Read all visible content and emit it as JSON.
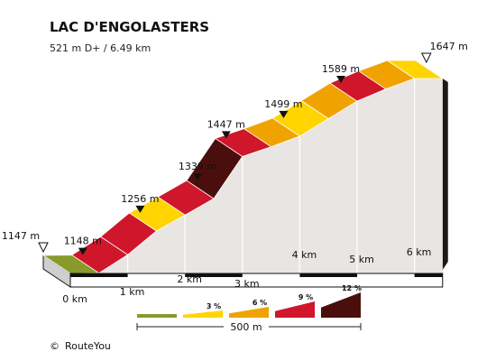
{
  "chart_data": {
    "type": "area",
    "title": "LAC D'ENGOLASTERS",
    "subtitle": "521 m D+ / 6.49 km",
    "distance_unit": "km",
    "elevation_unit": "m",
    "x_range": [
      0,
      6.49
    ],
    "y_range": [
      1147,
      1647
    ],
    "profile": [
      {
        "km": 0.0,
        "ele": 1147
      },
      {
        "km": 0.5,
        "ele": 1148
      },
      {
        "km": 1.0,
        "ele": 1195
      },
      {
        "km": 1.5,
        "ele": 1256
      },
      {
        "km": 2.0,
        "ele": 1297
      },
      {
        "km": 2.5,
        "ele": 1339
      },
      {
        "km": 3.0,
        "ele": 1447
      },
      {
        "km": 3.5,
        "ele": 1472
      },
      {
        "km": 4.0,
        "ele": 1499
      },
      {
        "km": 4.5,
        "ele": 1544
      },
      {
        "km": 5.0,
        "ele": 1589
      },
      {
        "km": 5.5,
        "ele": 1620
      },
      {
        "km": 6.0,
        "ele": 1647
      },
      {
        "km": 6.49,
        "ele": 1647
      }
    ],
    "segment_grades": [
      "low",
      "high",
      "high",
      "medium",
      "high",
      "very_high",
      "high",
      "medium-high",
      "medium",
      "medium-high",
      "high",
      "medium-high",
      "medium"
    ],
    "elevation_labels": [
      {
        "km": 0.0,
        "label": "1147 m",
        "marker": "start"
      },
      {
        "km": 0.5,
        "label": "1148 m",
        "marker": "point"
      },
      {
        "km": 1.5,
        "label": "1256 m",
        "marker": "point"
      },
      {
        "km": 2.5,
        "label": "1339 m",
        "marker": "point"
      },
      {
        "km": 3.0,
        "label": "1447 m",
        "marker": "point"
      },
      {
        "km": 4.0,
        "label": "1499 m",
        "marker": "point"
      },
      {
        "km": 5.0,
        "label": "1589 m",
        "marker": "point"
      },
      {
        "km": 6.49,
        "label": "1647 m",
        "marker": "end"
      }
    ],
    "km_ticks": [
      {
        "km": 0,
        "label": "0 km"
      },
      {
        "km": 1,
        "label": "1 km"
      },
      {
        "km": 2,
        "label": "2 km"
      },
      {
        "km": 3,
        "label": "3 km"
      },
      {
        "km": 4,
        "label": "4 km"
      },
      {
        "km": 5,
        "label": "5 km"
      },
      {
        "km": 6,
        "label": "6 km"
      }
    ],
    "legend": [
      {
        "label": "",
        "color": "#8a9a2a"
      },
      {
        "label": "3 %",
        "color": "#ffd400"
      },
      {
        "label": "6 %",
        "color": "#f0a300"
      },
      {
        "label": "9 %",
        "color": "#d0162a"
      },
      {
        "label": "12 %",
        "color": "#4a0f0c"
      }
    ],
    "scale_label": "500 m",
    "colors": {
      "low": "#8a9a2a",
      "medium": "#ffd400",
      "medium-high": "#f0a300",
      "high": "#d0162a",
      "very_high": "#4a0f0c"
    }
  },
  "footer": {
    "copyright_symbol": "©",
    "brand": "RouteYou"
  }
}
